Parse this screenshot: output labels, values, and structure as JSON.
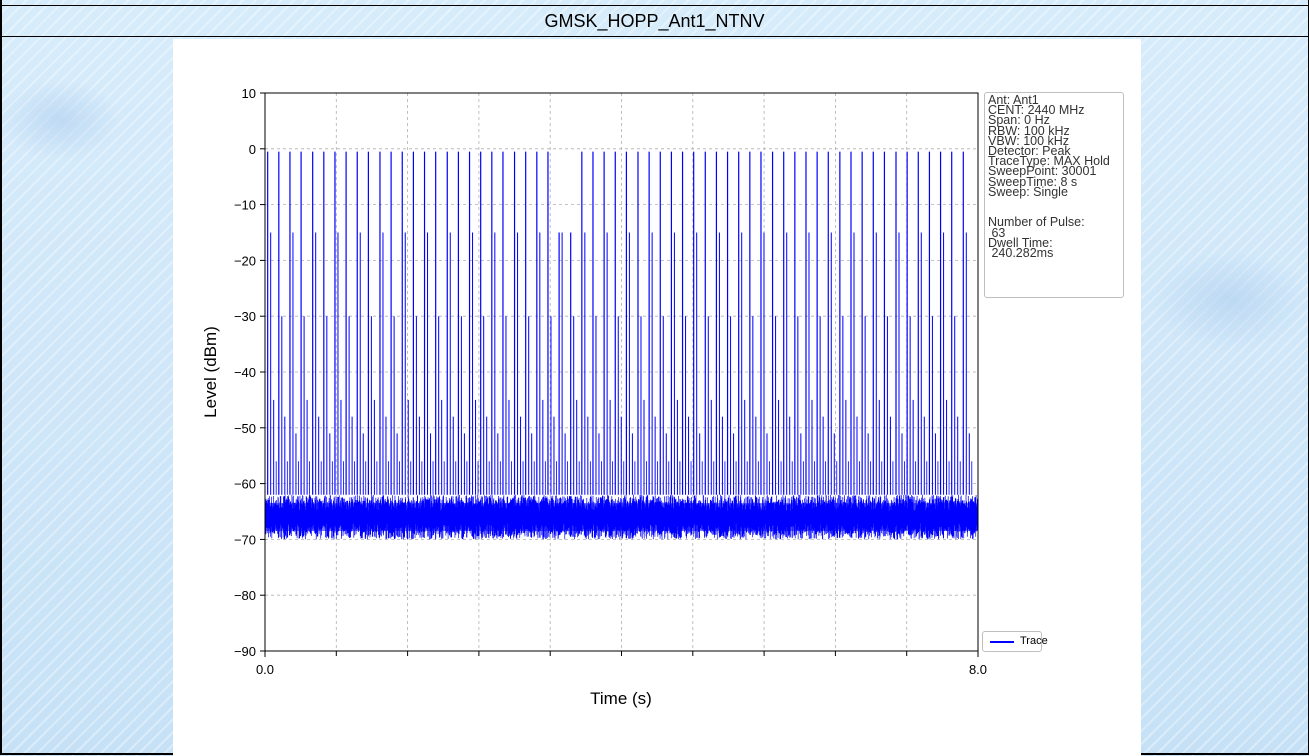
{
  "page_title": "GMSK_HOPP_Ant1_NTNV",
  "colors": {
    "trace": "#0000ff",
    "grid": "#b0b0b0",
    "background": "#cfe6f7"
  },
  "info_box": [
    "Ant: Ant1",
    "CENT: 2440 MHz",
    "Span: 0 Hz",
    "RBW: 100 kHz",
    "VBW: 100 kHz",
    "Detector: Peak",
    "TraceType: MAX Hold",
    "SweepPoint: 30001",
    "SweepTime: 8 s",
    "Sweep: Single",
    "",
    "",
    "Number of Pulse:",
    " 63",
    "Dwell Time:",
    " 240.282ms"
  ],
  "chart_data": {
    "type": "line",
    "title": "",
    "xlabel": "Time (s)",
    "ylabel": "Level (dBm)",
    "xlim": [
      0,
      8
    ],
    "ylim": [
      -90,
      10
    ],
    "xticks": [
      0.0,
      8.0
    ],
    "xtick_labels": [
      "0.0",
      "8.0"
    ],
    "x_minor_ticks": [
      0.8,
      1.6,
      2.4,
      3.2,
      4.0,
      4.8,
      5.6,
      6.4,
      7.2
    ],
    "yticks": [
      10,
      0,
      -10,
      -20,
      -30,
      -40,
      -50,
      -60,
      -70,
      -80,
      -90
    ],
    "ytick_labels": [
      "10",
      "0",
      "−10",
      "−20",
      "−30",
      "−40",
      "−50",
      "−60",
      "−70",
      "−80",
      "−90"
    ],
    "grid": true,
    "legend_position": "bottom-right",
    "series": [
      {
        "name": "Trace",
        "color": "#0000ff",
        "noise_floor_range_dBm": [
          -70,
          -62
        ],
        "pulse_count": 63,
        "pulse_times_s": [
          0.03,
          0.155,
          0.28,
          0.405,
          0.535,
          0.66,
          0.785,
          0.91,
          1.035,
          1.16,
          1.29,
          1.415,
          1.54,
          1.665,
          1.79,
          1.915,
          2.045,
          2.17,
          2.295,
          2.42,
          2.545,
          2.67,
          2.8,
          2.925,
          3.05,
          3.175,
          3.3,
          3.43,
          3.555,
          3.68,
          3.805,
          3.93,
          4.055,
          4.185,
          4.31,
          4.435,
          4.56,
          4.685,
          4.81,
          4.94,
          5.065,
          5.19,
          5.315,
          5.44,
          5.565,
          5.695,
          5.82,
          5.945,
          6.07,
          6.195,
          6.32,
          6.45,
          6.575,
          6.7,
          6.825,
          6.95,
          7.08,
          7.205,
          7.33,
          7.455,
          7.58,
          7.705,
          7.835
        ],
        "pulse_peak_dBm": -0.5,
        "pulse_secondary_dBm": [
          -15,
          -30
        ]
      }
    ]
  }
}
